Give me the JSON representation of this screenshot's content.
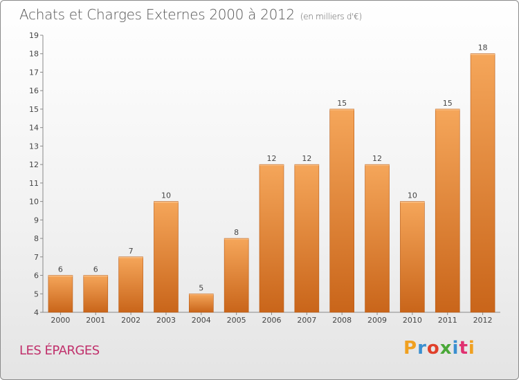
{
  "title": "Achats et Charges Externes 2000 à 2012",
  "unit": "(en milliers d'€)",
  "commune": "LES ÉPARGES",
  "logo": {
    "letters": [
      "P",
      "r",
      "o",
      "x",
      "i",
      "t",
      "i"
    ],
    "colors": [
      "#f0a020",
      "#3a8fd0",
      "#e0402a",
      "#4aa838",
      "#3a8fd0",
      "#e03070",
      "#f0a020"
    ]
  },
  "colors": {
    "bar_top": "#f5a65a",
    "bar_bottom": "#c9651a",
    "bar_edge": "#b85a14",
    "title": "#555555",
    "commune": "#c0306b"
  },
  "chart_data": {
    "type": "bar",
    "categories": [
      "2000",
      "2001",
      "2002",
      "2003",
      "2004",
      "2005",
      "2006",
      "2007",
      "2008",
      "2009",
      "2010",
      "2011",
      "2012"
    ],
    "values": [
      6,
      6,
      7,
      10,
      5,
      8,
      12,
      12,
      15,
      12,
      10,
      15,
      18
    ],
    "data_labels": [
      "6",
      "6",
      "7",
      "10",
      "5",
      "8",
      "12",
      "12",
      "15",
      "12",
      "10",
      "15",
      "18"
    ],
    "ylim": [
      4,
      19
    ],
    "yticks": [
      "4",
      "5",
      "6",
      "7",
      "8",
      "9",
      "10",
      "11",
      "12",
      "13",
      "14",
      "15",
      "16",
      "17",
      "18",
      "19"
    ],
    "grid": false,
    "legend": "none"
  }
}
